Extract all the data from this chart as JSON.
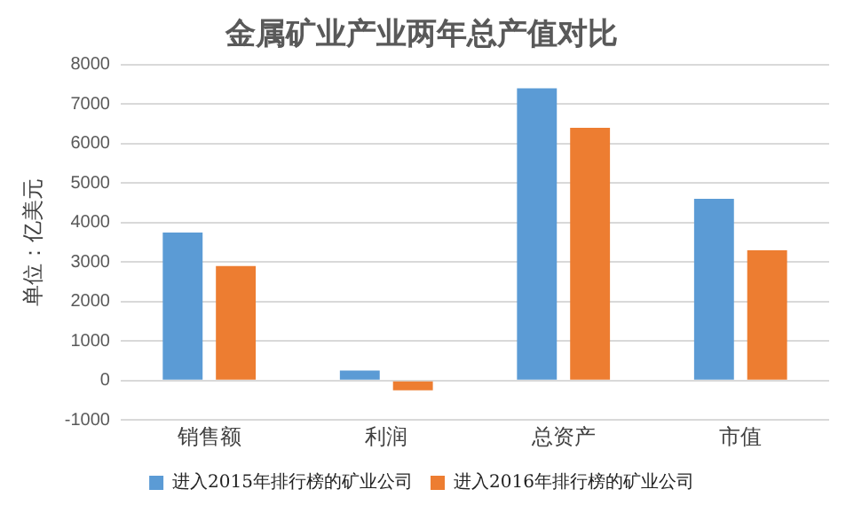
{
  "chart_data": {
    "type": "bar",
    "title": "金属矿业产业两年总产值对比",
    "ylabel": "单位：亿美元",
    "categories": [
      "销售额",
      "利润",
      "总资产",
      "市值"
    ],
    "series": [
      {
        "name": "进入2015年排行榜的矿业公司",
        "color": "#5b9bd5",
        "values": [
          3750,
          250,
          7400,
          4600
        ]
      },
      {
        "name": "进入2016年排行榜的矿业公司",
        "color": "#ed7d31",
        "values": [
          2900,
          -250,
          6400,
          3300
        ]
      }
    ],
    "ylim": [
      -1000,
      8000
    ],
    "yticks": [
      -1000,
      0,
      1000,
      2000,
      3000,
      4000,
      5000,
      6000,
      7000,
      8000
    ],
    "grid": "y",
    "legend": "bottom"
  }
}
